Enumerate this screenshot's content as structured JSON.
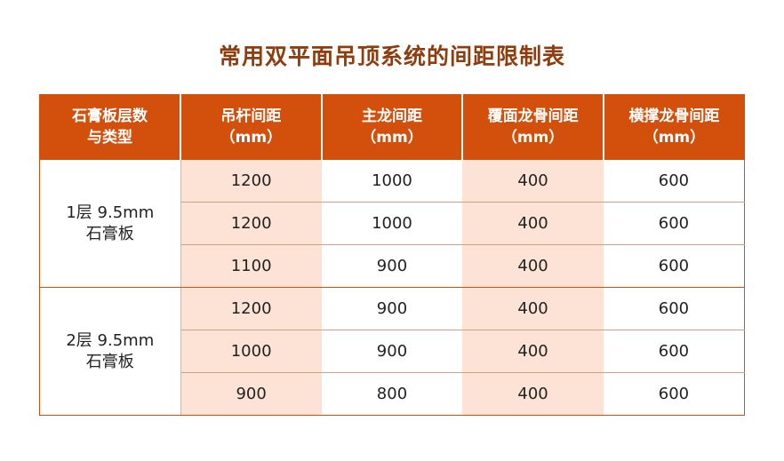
{
  "title": "常用双平面吊顶系统的间距限制表",
  "headers": [
    [
      "石膏板层数",
      "与类型"
    ],
    [
      "吊杆间距",
      "（mm）"
    ],
    [
      "主龙间距",
      "（mm）"
    ],
    [
      "覆面龙骨间距",
      "（mm）"
    ],
    [
      "横撑龙骨间距",
      "（mm）"
    ]
  ],
  "groups": [
    {
      "type": [
        "1层 9.5mm",
        "石膏板"
      ],
      "rows": [
        [
          "1200",
          "1000",
          "400",
          "600"
        ],
        [
          "1200",
          "1000",
          "400",
          "600"
        ],
        [
          "1100",
          "900",
          "400",
          "600"
        ]
      ]
    },
    {
      "type": [
        "2层 9.5mm",
        "石膏板"
      ],
      "rows": [
        [
          "1200",
          "900",
          "400",
          "600"
        ],
        [
          "1000",
          "900",
          "400",
          "600"
        ],
        [
          "900",
          "800",
          "400",
          "600"
        ]
      ]
    }
  ],
  "colors": {
    "header": "#d2500c",
    "title": "#8f3d0f",
    "highlight": "#fde3d6"
  }
}
